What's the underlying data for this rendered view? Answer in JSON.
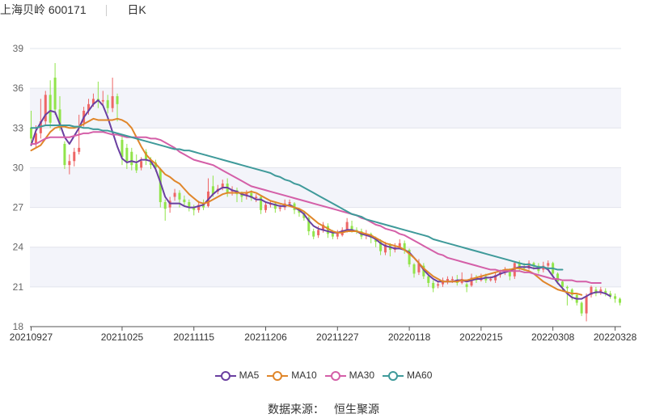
{
  "header": {
    "stock_name": "上海贝岭 600171",
    "period": "日K"
  },
  "source": {
    "label": "数据来源：",
    "provider": "恒生聚源"
  },
  "chart_data": {
    "type": "candlestick",
    "ylim": [
      18,
      39
    ],
    "yticks": [
      18,
      21,
      24,
      27,
      30,
      33,
      36,
      39
    ],
    "x_labels": [
      "20210927",
      "20211025",
      "20211115",
      "20211206",
      "20211227",
      "20220118",
      "20220215",
      "20220308",
      "20220328"
    ],
    "x_label_index": [
      0,
      19,
      34,
      49,
      64,
      79,
      94,
      109,
      122
    ],
    "colors": {
      "up": "#ee6666",
      "down": "#91e44a",
      "ma5": "#6a3fa0",
      "ma10": "#e0862a",
      "ma30": "#d45fa8",
      "ma60": "#3f9a9a"
    },
    "candles": [
      [
        33.0,
        32.2,
        34.3,
        31.8
      ],
      [
        31.8,
        32.6,
        33.2,
        31.5
      ],
      [
        32.6,
        33.5,
        35.2,
        32.2
      ],
      [
        33.5,
        35.5,
        35.8,
        33.2
      ],
      [
        35.5,
        33.4,
        36.6,
        33.0
      ],
      [
        36.8,
        34.4,
        37.9,
        34.0
      ],
      [
        34.4,
        33.0,
        35.4,
        32.8
      ],
      [
        31.8,
        30.2,
        32.0,
        29.9
      ],
      [
        30.2,
        30.5,
        31.0,
        29.5
      ],
      [
        30.5,
        31.2,
        31.5,
        30.1
      ],
      [
        31.2,
        31.5,
        34.0,
        31.0
      ],
      [
        33.4,
        34.3,
        34.6,
        33.1
      ],
      [
        34.3,
        34.8,
        35.2,
        34.0
      ],
      [
        34.8,
        35.2,
        35.6,
        34.6
      ],
      [
        35.2,
        35.0,
        36.5,
        34.5
      ],
      [
        35.0,
        35.1,
        35.8,
        34.7
      ],
      [
        35.1,
        34.5,
        35.5,
        34.1
      ],
      [
        34.5,
        35.4,
        36.8,
        34.2
      ],
      [
        35.4,
        34.8,
        35.6,
        33.5
      ],
      [
        32.1,
        30.8,
        32.5,
        30.2
      ],
      [
        31.5,
        30.5,
        31.8,
        29.9
      ],
      [
        31.2,
        30.2,
        31.5,
        29.8
      ],
      [
        30.3,
        29.8,
        31.0,
        29.6
      ],
      [
        30.0,
        30.5,
        30.8,
        29.8
      ],
      [
        31.2,
        30.6,
        31.4,
        30.2
      ],
      [
        30.6,
        30.2,
        30.8,
        29.9
      ],
      [
        30.4,
        30.0,
        30.6,
        29.7
      ],
      [
        29.9,
        27.4,
        30.0,
        27.0
      ],
      [
        27.4,
        26.9,
        27.6,
        26.0
      ],
      [
        27.0,
        27.5,
        27.8,
        26.6
      ],
      [
        27.8,
        28.1,
        28.4,
        27.5
      ],
      [
        28.1,
        27.6,
        28.3,
        27.0
      ],
      [
        27.6,
        27.4,
        27.9,
        27.1
      ],
      [
        27.4,
        27.0,
        27.6,
        26.7
      ],
      [
        27.0,
        26.8,
        27.2,
        26.4
      ],
      [
        26.8,
        27.2,
        27.5,
        26.6
      ],
      [
        27.3,
        27.0,
        27.6,
        26.8
      ],
      [
        27.1,
        28.2,
        29.2,
        27.0
      ],
      [
        28.6,
        28.0,
        29.4,
        27.8
      ],
      [
        28.2,
        28.4,
        28.7,
        28.0
      ],
      [
        28.5,
        28.8,
        29.1,
        28.3
      ],
      [
        28.8,
        28.1,
        29.2,
        27.8
      ],
      [
        28.2,
        28.3,
        28.6,
        27.9
      ],
      [
        28.3,
        28.0,
        28.5,
        27.4
      ],
      [
        28.0,
        27.8,
        28.2,
        27.4
      ],
      [
        27.9,
        28.1,
        28.3,
        27.6
      ],
      [
        28.1,
        27.7,
        28.3,
        27.5
      ],
      [
        27.7,
        27.8,
        28.0,
        27.4
      ],
      [
        27.8,
        26.8,
        27.9,
        26.5
      ],
      [
        26.8,
        27.2,
        27.4,
        26.6
      ],
      [
        27.2,
        27.3,
        27.5,
        27.0
      ],
      [
        27.3,
        26.9,
        27.4,
        26.6
      ],
      [
        26.9,
        27.0,
        27.2,
        26.7
      ],
      [
        27.0,
        27.3,
        27.6,
        26.8
      ],
      [
        27.3,
        27.4,
        27.6,
        27.1
      ],
      [
        27.3,
        26.8,
        27.4,
        26.5
      ],
      [
        26.8,
        26.6,
        26.9,
        26.3
      ],
      [
        26.6,
        26.2,
        26.7,
        26.0
      ],
      [
        26.2,
        25.2,
        26.3,
        24.9
      ],
      [
        25.2,
        24.8,
        25.4,
        24.6
      ],
      [
        24.9,
        25.3,
        25.6,
        24.7
      ],
      [
        25.3,
        25.7,
        25.9,
        25.1
      ],
      [
        25.6,
        25.0,
        25.8,
        24.7
      ],
      [
        25.1,
        24.8,
        25.3,
        24.6
      ],
      [
        24.8,
        25.1,
        25.3,
        24.6
      ],
      [
        24.9,
        25.3,
        25.5,
        24.8
      ],
      [
        25.3,
        25.9,
        26.2,
        25.1
      ],
      [
        25.6,
        25.3,
        26.0,
        25.1
      ],
      [
        25.3,
        25.2,
        25.5,
        25.0
      ],
      [
        25.2,
        24.8,
        25.4,
        24.6
      ],
      [
        24.9,
        25.0,
        25.3,
        24.6
      ],
      [
        25.0,
        24.7,
        25.1,
        24.3
      ],
      [
        24.6,
        24.4,
        24.8,
        24.0
      ],
      [
        24.4,
        23.7,
        24.6,
        23.4
      ],
      [
        23.6,
        24.2,
        24.4,
        23.4
      ],
      [
        24.2,
        23.8,
        24.3,
        23.3
      ],
      [
        23.8,
        24.0,
        24.3,
        23.6
      ],
      [
        24.0,
        24.3,
        24.6,
        23.9
      ],
      [
        24.3,
        23.8,
        24.5,
        23.5
      ],
      [
        23.8,
        22.7,
        23.9,
        22.5
      ],
      [
        22.7,
        22.0,
        22.8,
        21.7
      ],
      [
        22.1,
        22.8,
        23.1,
        21.9
      ],
      [
        22.6,
        21.8,
        22.8,
        21.6
      ],
      [
        21.8,
        21.3,
        22.0,
        21.0
      ],
      [
        21.3,
        20.9,
        21.5,
        20.6
      ],
      [
        21.1,
        21.2,
        21.4,
        20.9
      ],
      [
        21.2,
        21.5,
        21.7,
        21.0
      ],
      [
        21.4,
        21.6,
        21.8,
        21.2
      ],
      [
        21.5,
        21.6,
        21.8,
        21.3
      ],
      [
        21.5,
        21.3,
        21.9,
        21.1
      ],
      [
        21.3,
        21.6,
        22.1,
        21.2
      ],
      [
        21.2,
        21.0,
        21.3,
        20.6
      ],
      [
        21.1,
        21.7,
        22.0,
        21.0
      ],
      [
        21.7,
        21.5,
        21.9,
        21.3
      ],
      [
        21.5,
        21.8,
        22.0,
        21.4
      ],
      [
        21.8,
        21.5,
        22.0,
        21.3
      ],
      [
        21.5,
        21.6,
        21.8,
        21.4
      ],
      [
        21.5,
        21.9,
        22.1,
        21.3
      ],
      [
        21.9,
        22.1,
        22.3,
        21.7
      ],
      [
        22.1,
        22.3,
        22.5,
        21.9
      ],
      [
        22.3,
        21.8,
        22.4,
        21.5
      ],
      [
        21.8,
        22.8,
        22.9,
        21.6
      ],
      [
        22.8,
        22.5,
        23.0,
        22.2
      ],
      [
        22.5,
        22.4,
        22.8,
        22.2
      ],
      [
        22.4,
        22.8,
        23.0,
        22.3
      ],
      [
        22.8,
        22.6,
        22.9,
        22.3
      ],
      [
        22.6,
        22.2,
        22.8,
        22.0
      ],
      [
        22.3,
        22.6,
        22.9,
        22.1
      ],
      [
        22.6,
        22.8,
        23.0,
        22.4
      ],
      [
        22.8,
        22.0,
        22.9,
        21.8
      ],
      [
        22.0,
        21.4,
        22.1,
        21.2
      ],
      [
        21.4,
        21.0,
        21.5,
        20.7
      ],
      [
        21.0,
        20.9,
        21.1,
        19.6
      ],
      [
        20.8,
        20.4,
        20.9,
        20.0
      ],
      [
        20.4,
        19.8,
        20.5,
        19.6
      ],
      [
        19.8,
        19.0,
        19.9,
        18.8
      ],
      [
        19.0,
        20.3,
        20.5,
        18.4
      ],
      [
        20.4,
        21.0,
        21.1,
        20.2
      ],
      [
        20.8,
        20.5,
        21.0,
        20.3
      ],
      [
        20.6,
        20.8,
        21.0,
        20.4
      ],
      [
        20.7,
        20.5,
        20.9,
        20.3
      ],
      [
        20.5,
        20.3,
        20.7,
        20.1
      ],
      [
        20.3,
        20.1,
        20.5,
        19.8
      ],
      [
        20.1,
        19.8,
        20.2,
        19.6
      ]
    ],
    "series": [
      {
        "name": "MA5",
        "values": [
          31.7,
          32.8,
          33.4,
          34.0,
          34.3,
          34.2,
          33.3,
          32.3,
          31.8,
          32.4,
          33.0,
          33.8,
          34.3,
          34.8,
          35.1,
          34.7,
          33.8,
          32.7,
          31.6,
          30.7,
          30.4,
          30.5,
          30.4,
          30.6,
          30.6,
          30.5,
          29.9,
          28.9,
          27.8,
          27.3,
          27.3,
          27.3,
          27.1,
          27.0,
          27.0,
          27.1,
          27.2,
          27.6,
          28.0,
          28.3,
          28.5,
          28.5,
          28.3,
          28.2,
          28.0,
          27.9,
          27.8,
          27.6,
          27.6,
          27.4,
          27.3,
          27.2,
          27.1,
          27.1,
          27.2,
          27.0,
          26.8,
          26.5,
          26.0,
          25.6,
          25.4,
          25.3,
          25.2,
          25.1,
          25.1,
          25.2,
          25.3,
          25.3,
          25.2,
          25.0,
          24.9,
          24.8,
          24.6,
          24.3,
          24.1,
          24.0,
          23.9,
          23.9,
          23.8,
          23.6,
          23.2,
          22.8,
          22.3,
          21.9,
          21.6,
          21.4,
          21.4,
          21.4,
          21.4,
          21.5,
          21.5,
          21.4,
          21.5,
          21.6,
          21.6,
          21.7,
          21.7,
          21.8,
          22.0,
          22.1,
          22.2,
          22.4,
          22.5,
          22.5,
          22.5,
          22.4,
          22.4,
          22.5,
          22.3,
          21.8,
          21.3,
          20.9,
          20.5,
          20.2,
          20.1,
          20.1,
          20.3,
          20.5,
          20.6,
          20.6,
          20.5,
          20.3
        ],
        "ma_start": 0
      },
      {
        "name": "MA10",
        "values": [
          31.3,
          31.5,
          31.7,
          32.2,
          32.7,
          33.0,
          33.1,
          33.1,
          33.0,
          33.0,
          33.1,
          33.3,
          33.5,
          33.7,
          33.6,
          33.6,
          33.6,
          33.6,
          33.7,
          33.6,
          33.4,
          33.0,
          32.3,
          31.6,
          31.0,
          30.6,
          30.3,
          29.9,
          29.5,
          29.3,
          29.0,
          28.8,
          28.4,
          28.0,
          27.7,
          27.4,
          27.3,
          27.4,
          27.6,
          27.8,
          28.0,
          28.1,
          28.1,
          28.1,
          28.1,
          28.1,
          28.2,
          28.1,
          27.9,
          27.7,
          27.5,
          27.4,
          27.3,
          27.2,
          27.1,
          27.0,
          26.9,
          26.7,
          26.4,
          26.1,
          25.8,
          25.6,
          25.4,
          25.2,
          25.1,
          25.1,
          25.2,
          25.2,
          25.2,
          25.1,
          25.0,
          24.9,
          24.7,
          24.5,
          24.3,
          24.2,
          24.1,
          24.0,
          23.8,
          23.5,
          23.2,
          22.8,
          22.4,
          22.1,
          21.8,
          21.6,
          21.4,
          21.4,
          21.4,
          21.4,
          21.5,
          21.5,
          21.6,
          21.7,
          21.8,
          21.9,
          22.0,
          22.1,
          22.2,
          22.3,
          22.3,
          22.4,
          22.4,
          22.3,
          22.2,
          22.0,
          21.7,
          21.4,
          21.2,
          21.0,
          20.8,
          20.7,
          20.6,
          20.5,
          20.5,
          20.4
        ],
        "ma_start": 0
      },
      {
        "name": "MA30",
        "values": [
          31.8,
          31.8,
          32.0,
          32.2,
          32.3,
          32.3,
          32.3,
          32.3,
          32.3,
          32.4,
          32.5,
          32.6,
          32.6,
          32.7,
          32.7,
          32.7,
          32.6,
          32.5,
          32.5,
          32.4,
          32.3,
          32.3,
          32.3,
          32.3,
          32.3,
          32.2,
          32.2,
          32.1,
          31.9,
          31.7,
          31.5,
          31.2,
          31.0,
          30.8,
          30.6,
          30.5,
          30.4,
          30.3,
          30.2,
          30.0,
          29.8,
          29.6,
          29.4,
          29.2,
          29.0,
          28.8,
          28.6,
          28.5,
          28.4,
          28.3,
          28.2,
          28.1,
          28.0,
          27.9,
          27.8,
          27.7,
          27.6,
          27.5,
          27.4,
          27.3,
          27.2,
          27.1,
          27.0,
          26.9,
          26.8,
          26.7,
          26.6,
          26.5,
          26.4,
          26.2,
          26.1,
          25.9,
          25.7,
          25.6,
          25.4,
          25.3,
          25.2,
          25.0,
          24.9,
          24.7,
          24.5,
          24.3,
          24.1,
          23.9,
          23.7,
          23.5,
          23.4,
          23.2,
          23.1,
          23.0,
          22.9,
          22.8,
          22.7,
          22.6,
          22.5,
          22.4,
          22.3,
          22.3,
          22.2,
          22.2,
          22.2,
          22.2,
          22.2,
          22.1,
          22.1,
          22.0,
          21.9,
          21.8,
          21.7,
          21.6,
          21.6,
          21.5,
          21.5,
          21.5,
          21.4,
          21.4,
          21.4,
          21.3,
          21.3,
          21.3
        ],
        "ma_start": 0
      },
      {
        "name": "MA60",
        "values": [
          33.0,
          33.0,
          33.1,
          33.2,
          33.2,
          33.2,
          33.2,
          33.2,
          33.2,
          33.1,
          33.1,
          33.0,
          33.0,
          32.9,
          32.9,
          32.8,
          32.8,
          32.7,
          32.6,
          32.5,
          32.4,
          32.3,
          32.2,
          32.1,
          32.0,
          31.9,
          31.8,
          31.7,
          31.6,
          31.5,
          31.4,
          31.4,
          31.3,
          31.3,
          31.2,
          31.1,
          31.0,
          30.9,
          30.8,
          30.7,
          30.6,
          30.5,
          30.4,
          30.3,
          30.2,
          30.1,
          30.0,
          29.9,
          29.8,
          29.7,
          29.6,
          29.4,
          29.3,
          29.1,
          29.0,
          28.8,
          28.7,
          28.5,
          28.3,
          28.1,
          27.9,
          27.7,
          27.5,
          27.3,
          27.1,
          26.9,
          26.7,
          26.5,
          26.4,
          26.3,
          26.1,
          26.0,
          25.9,
          25.8,
          25.7,
          25.6,
          25.5,
          25.4,
          25.3,
          25.2,
          25.1,
          25.0,
          24.9,
          24.8,
          24.6,
          24.5,
          24.4,
          24.3,
          24.2,
          24.1,
          24.0,
          23.9,
          23.8,
          23.7,
          23.6,
          23.5,
          23.4,
          23.3,
          23.2,
          23.1,
          23.0,
          22.9,
          22.8,
          22.7,
          22.7,
          22.6,
          22.5,
          22.5,
          22.4,
          22.4,
          22.3,
          22.3
        ],
        "ma_start": 0
      }
    ],
    "legend": [
      "MA5",
      "MA10",
      "MA30",
      "MA60"
    ],
    "legend_position": "bottom-center",
    "grid": "horizontal"
  }
}
